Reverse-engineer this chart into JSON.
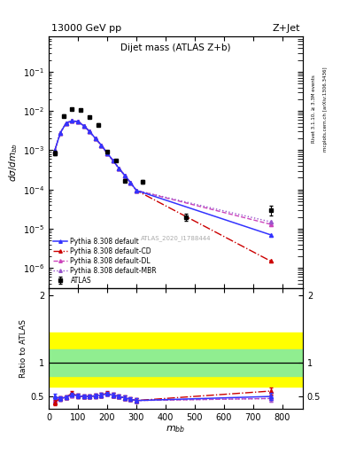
{
  "title_top": "13000 GeV pp",
  "title_top_right": "Z+Jet",
  "plot_title": "Dijet mass (ATLAS Z+b)",
  "watermark": "ATLAS_2020_I1788444",
  "right_label_top": "Rivet 3.1.10, ≥ 3.3M events",
  "right_label_bottom": "mcplots.cern.ch [arXiv:1306.3436]",
  "xlabel": "$m_{bb}$",
  "ylabel_main": "$d\\sigma/dm_{bb}$",
  "ylabel_ratio": "Ratio to ATLAS",
  "xlim": [
    0,
    870
  ],
  "ylim_main": [
    3e-07,
    0.8
  ],
  "ratio_ylim": [
    0.32,
    2.1
  ],
  "atlas_x": [
    20,
    50,
    80,
    110,
    140,
    170,
    200,
    230,
    260,
    320,
    470,
    760
  ],
  "atlas_y": [
    0.00085,
    0.0075,
    0.0115,
    0.0105,
    0.007,
    0.0045,
    0.0009,
    0.00055,
    0.00017,
    0.00016,
    2e-05,
    3e-05
  ],
  "atlas_yerr": [
    0.0001,
    0.0006,
    0.0006,
    0.0006,
    0.0004,
    0.0003,
    8e-05,
    4e-05,
    1.5e-05,
    1.5e-05,
    4e-06,
    8e-06
  ],
  "px": [
    20,
    40,
    60,
    80,
    100,
    120,
    140,
    160,
    180,
    200,
    220,
    240,
    260,
    280,
    300,
    760
  ],
  "py_def": [
    0.00095,
    0.0028,
    0.005,
    0.0056,
    0.0054,
    0.0042,
    0.003,
    0.002,
    0.00135,
    0.00085,
    0.00055,
    0.00035,
    0.00023,
    0.00015,
    9.5e-05,
    7e-06
  ],
  "py_CD": [
    0.00095,
    0.0028,
    0.005,
    0.0056,
    0.0054,
    0.0042,
    0.003,
    0.002,
    0.00135,
    0.00085,
    0.00055,
    0.00035,
    0.00023,
    0.00015,
    9.5e-05,
    1.5e-06
  ],
  "py_DL": [
    0.00095,
    0.0028,
    0.005,
    0.0056,
    0.0054,
    0.0042,
    0.003,
    0.002,
    0.00135,
    0.00085,
    0.00055,
    0.00035,
    0.00023,
    0.00015,
    9.5e-05,
    1.3e-05
  ],
  "py_MBR": [
    0.00095,
    0.0028,
    0.005,
    0.0056,
    0.0054,
    0.0042,
    0.003,
    0.002,
    0.00135,
    0.00085,
    0.00055,
    0.00035,
    0.00023,
    0.00015,
    9.5e-05,
    1.5e-05
  ],
  "ratio_band_yellow_lo": 0.65,
  "ratio_band_yellow_hi": 1.45,
  "ratio_band_green_lo": 0.8,
  "ratio_band_green_hi": 1.2,
  "rx": [
    20,
    40,
    60,
    80,
    100,
    120,
    140,
    160,
    180,
    200,
    220,
    240,
    260,
    280,
    300,
    760
  ],
  "r_def": [
    0.5,
    0.47,
    0.49,
    0.53,
    0.51,
    0.5,
    0.5,
    0.51,
    0.52,
    0.54,
    0.52,
    0.5,
    0.48,
    0.46,
    0.44,
    0.5
  ],
  "r_CD": [
    0.41,
    0.47,
    0.49,
    0.55,
    0.51,
    0.5,
    0.5,
    0.51,
    0.52,
    0.55,
    0.52,
    0.5,
    0.48,
    0.46,
    0.44,
    0.58
  ],
  "r_DL": [
    0.45,
    0.47,
    0.49,
    0.52,
    0.51,
    0.5,
    0.5,
    0.51,
    0.52,
    0.54,
    0.52,
    0.5,
    0.48,
    0.46,
    0.44,
    0.47
  ],
  "r_MBR": [
    0.43,
    0.47,
    0.49,
    0.52,
    0.51,
    0.5,
    0.5,
    0.51,
    0.52,
    0.54,
    0.52,
    0.5,
    0.48,
    0.46,
    0.44,
    0.47
  ],
  "r_err": [
    0.04,
    0.03,
    0.03,
    0.03,
    0.03,
    0.03,
    0.03,
    0.03,
    0.03,
    0.03,
    0.03,
    0.03,
    0.03,
    0.03,
    0.03,
    0.05
  ],
  "color_default": "#3333ff",
  "color_CD": "#cc0000",
  "color_DL": "#cc44bb",
  "color_MBR": "#9955cc",
  "color_atlas": "#000000"
}
